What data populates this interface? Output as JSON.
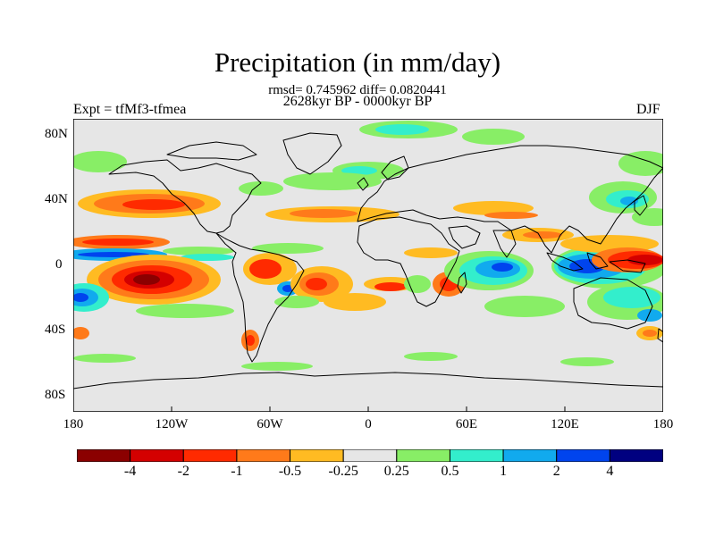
{
  "title": "Precipitation (in mm/day)",
  "stats_line": "rmsd= 0.745962 diff= 0.0820441",
  "period_line": "2628kyr BP - 0000kyr BP",
  "experiment_label": "Expt = tfMf3-tfmea",
  "season_label": "DJF",
  "map": {
    "projection": "cylindrical-equidistant",
    "lon_range": [
      -180,
      180
    ],
    "lat_range": [
      -90,
      90
    ],
    "background_color": "#e6e6e6",
    "y_axis_labels": [
      "80N",
      "40N",
      "0",
      "40S",
      "80S"
    ],
    "x_axis_labels": [
      "180",
      "120W",
      "60W",
      "0",
      "60E",
      "120E",
      "180"
    ]
  },
  "colorbar": {
    "colors": [
      "#8b0000",
      "#d40000",
      "#ff2a00",
      "#ff7a1a",
      "#ffbb22",
      "#e6e6e6",
      "#88ee66",
      "#33eecc",
      "#11aaee",
      "#0044ee",
      "#000080"
    ],
    "labels": [
      "-4",
      "-2",
      "-1",
      "-0.5",
      "-0.25",
      "0.25",
      "0.5",
      "1",
      "2",
      "4"
    ]
  }
}
